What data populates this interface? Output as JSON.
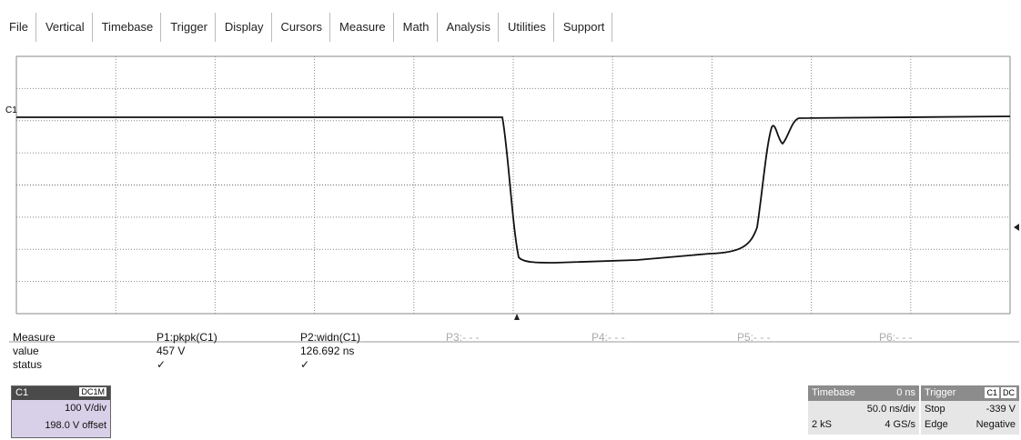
{
  "menu": [
    "File",
    "Vertical",
    "Timebase",
    "Trigger",
    "Display",
    "Cursors",
    "Measure",
    "Math",
    "Analysis",
    "Utilities",
    "Support"
  ],
  "trace_label": "C1",
  "measure": {
    "header": [
      "Measure",
      "P1:pkpk(C1)",
      "P2:widn(C1)",
      "P3:- - -",
      "P4:- - -",
      "P5:- - -",
      "P6:- - -"
    ],
    "rows": [
      [
        "value",
        "457 V",
        "126.692 ns"
      ],
      [
        "status",
        "✓",
        "✓"
      ]
    ]
  },
  "channel": {
    "name": "C1",
    "coupling": "DC1M",
    "scale": "100 V/div",
    "offset": "198.0 V offset"
  },
  "timebase": {
    "label": "Timebase",
    "delay": "0 ns",
    "scale": "50.0 ns/div",
    "samples": "2 kS",
    "rate": "4 GS/s"
  },
  "trigger": {
    "label": "Trigger",
    "source": "C1",
    "coupling": "DC",
    "mode": "Stop",
    "level": "-339 V",
    "type": "Edge",
    "slope": "Negative"
  }
}
